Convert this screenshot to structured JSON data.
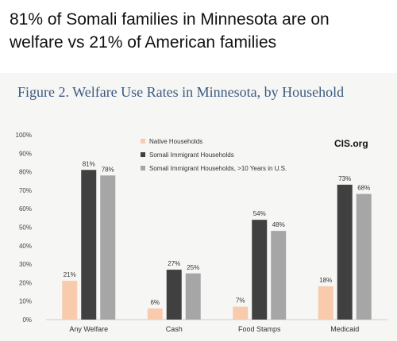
{
  "headline": {
    "line1": "81% of Somali families in Minnesota are on",
    "line2": "welfare vs 21% of American families"
  },
  "figure_title": "Figure 2. Welfare Use Rates in Minnesota, by Household",
  "brand": "CIS.org",
  "colors": {
    "native": "#f8cbad",
    "somali": "#404040",
    "somali_10yr": "#a6a6a6",
    "title": "#3b5a82"
  },
  "chart_data": {
    "type": "bar",
    "title": "Figure 2. Welfare Use Rates in Minnesota, by Household",
    "categories": [
      "Any Welfare",
      "Cash",
      "Food Stamps",
      "Medicaid"
    ],
    "series": [
      {
        "name": "Native Households",
        "values": [
          21,
          6,
          7,
          18
        ]
      },
      {
        "name": "Somali Immigrant Households",
        "values": [
          81,
          27,
          54,
          73
        ]
      },
      {
        "name": "Somali Immigrant Households, >10 Years in U.S.",
        "values": [
          78,
          25,
          48,
          68
        ]
      }
    ],
    "ylim": [
      0,
      100
    ],
    "yticks": [
      "0%",
      "10%",
      "20%",
      "30%",
      "40%",
      "50%",
      "60%",
      "70%",
      "80%",
      "90%",
      "100%"
    ],
    "xlabel": "",
    "ylabel": "",
    "grid": false,
    "legend_position": "top-center"
  }
}
